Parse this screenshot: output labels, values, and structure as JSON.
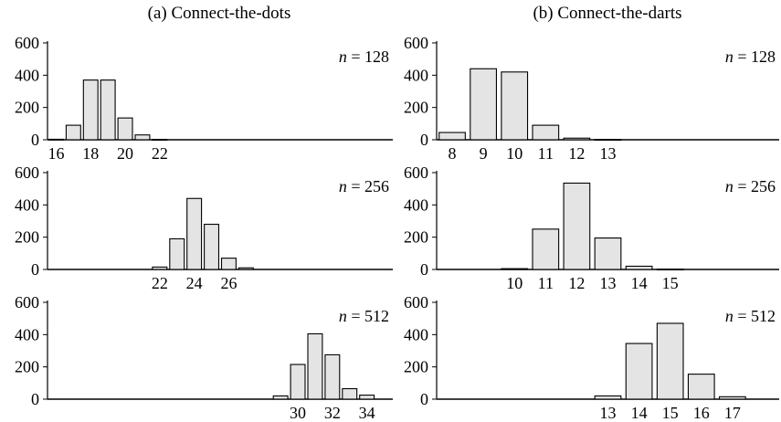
{
  "columns": [
    {
      "title": "(a) Connect-the-dots"
    },
    {
      "title": "(b) Connect-the-darts"
    }
  ],
  "y_ticks": [
    "600",
    "400",
    "200",
    "0"
  ],
  "chart_data": [
    {
      "type": "bar",
      "column": "a",
      "n_label": "n = 128",
      "n_var": "n",
      "n_value": "= 128",
      "ylim": [
        0,
        600
      ],
      "yticks": [
        0,
        200,
        400,
        600
      ],
      "xlim": [
        15.5,
        35.5
      ],
      "xticks": [
        16,
        18,
        20,
        22
      ],
      "bars": [
        {
          "x": 16,
          "y": 3
        },
        {
          "x": 17,
          "y": 90
        },
        {
          "x": 18,
          "y": 370
        },
        {
          "x": 19,
          "y": 370
        },
        {
          "x": 20,
          "y": 135
        },
        {
          "x": 21,
          "y": 30
        },
        {
          "x": 22,
          "y": 2
        }
      ]
    },
    {
      "type": "bar",
      "column": "a",
      "n_label": "n = 256",
      "n_var": "n",
      "n_value": "= 256",
      "ylim": [
        0,
        600
      ],
      "yticks": [
        0,
        200,
        400,
        600
      ],
      "xlim": [
        15.5,
        35.5
      ],
      "xticks": [
        22,
        24,
        26
      ],
      "bars": [
        {
          "x": 22,
          "y": 15
        },
        {
          "x": 23,
          "y": 190
        },
        {
          "x": 24,
          "y": 440
        },
        {
          "x": 25,
          "y": 280
        },
        {
          "x": 26,
          "y": 70
        },
        {
          "x": 27,
          "y": 10
        }
      ]
    },
    {
      "type": "bar",
      "column": "a",
      "n_label": "n = 512",
      "n_var": "n",
      "n_value": "= 512",
      "ylim": [
        0,
        600
      ],
      "yticks": [
        0,
        200,
        400,
        600
      ],
      "xlim": [
        15.5,
        35.5
      ],
      "xticks": [
        30,
        32,
        34
      ],
      "bars": [
        {
          "x": 29,
          "y": 20
        },
        {
          "x": 30,
          "y": 215
        },
        {
          "x": 31,
          "y": 405
        },
        {
          "x": 32,
          "y": 275
        },
        {
          "x": 33,
          "y": 65
        },
        {
          "x": 34,
          "y": 25
        }
      ]
    },
    {
      "type": "bar",
      "column": "b",
      "n_label": "n = 128",
      "n_var": "n",
      "n_value": "= 128",
      "ylim": [
        0,
        600
      ],
      "yticks": [
        0,
        200,
        400,
        600
      ],
      "xlim": [
        7.5,
        18.5
      ],
      "xticks": [
        8,
        9,
        10,
        11,
        12,
        13
      ],
      "bars": [
        {
          "x": 8,
          "y": 45
        },
        {
          "x": 9,
          "y": 440
        },
        {
          "x": 10,
          "y": 420
        },
        {
          "x": 11,
          "y": 90
        },
        {
          "x": 12,
          "y": 10
        },
        {
          "x": 13,
          "y": 2
        }
      ]
    },
    {
      "type": "bar",
      "column": "b",
      "n_label": "n = 256",
      "n_var": "n",
      "n_value": "= 256",
      "ylim": [
        0,
        600
      ],
      "yticks": [
        0,
        200,
        400,
        600
      ],
      "xlim": [
        7.5,
        18.5
      ],
      "xticks": [
        10,
        11,
        12,
        13,
        14,
        15
      ],
      "bars": [
        {
          "x": 10,
          "y": 5
        },
        {
          "x": 11,
          "y": 250
        },
        {
          "x": 12,
          "y": 535
        },
        {
          "x": 13,
          "y": 195
        },
        {
          "x": 14,
          "y": 20
        },
        {
          "x": 15,
          "y": 2
        }
      ]
    },
    {
      "type": "bar",
      "column": "b",
      "n_label": "n = 512",
      "n_var": "n",
      "n_value": "= 512",
      "ylim": [
        0,
        600
      ],
      "yticks": [
        0,
        200,
        400,
        600
      ],
      "xlim": [
        7.5,
        18.5
      ],
      "xticks": [
        13,
        14,
        15,
        16,
        17
      ],
      "bars": [
        {
          "x": 13,
          "y": 20
        },
        {
          "x": 14,
          "y": 345
        },
        {
          "x": 15,
          "y": 470
        },
        {
          "x": 16,
          "y": 155
        },
        {
          "x": 17,
          "y": 15
        }
      ]
    }
  ]
}
